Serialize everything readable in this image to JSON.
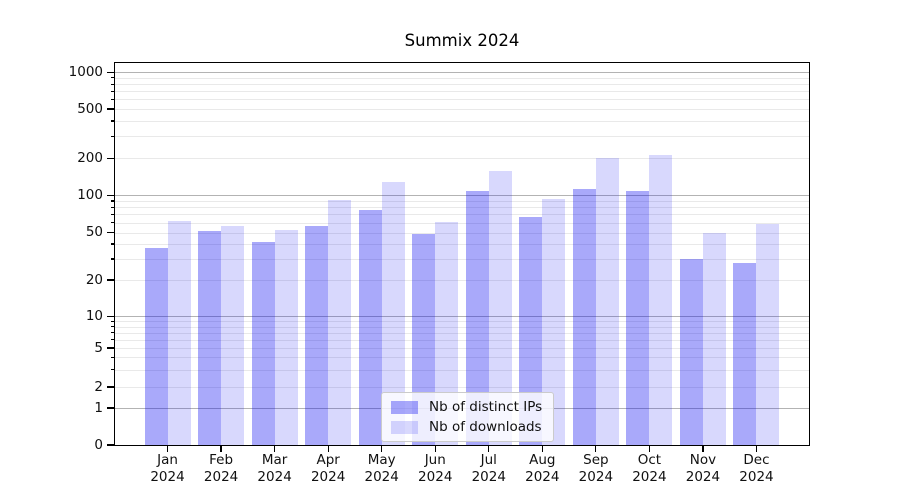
{
  "chart_data": {
    "type": "bar",
    "title": "Summix 2024",
    "year": "2024",
    "categories": [
      "Jan",
      "Feb",
      "Mar",
      "Apr",
      "May",
      "Jun",
      "Jul",
      "Aug",
      "Sep",
      "Oct",
      "Nov",
      "Dec"
    ],
    "series": [
      {
        "name": "Nb of distinct IPs",
        "color": "rgba(10,10,240,0.35)",
        "values": [
          37,
          51,
          42,
          56,
          76,
          49,
          108,
          67,
          113,
          109,
          30,
          28
        ]
      },
      {
        "name": "Nb of downloads",
        "color": "rgba(10,10,240,0.16)",
        "values": [
          62,
          56,
          52,
          91,
          128,
          61,
          158,
          94,
          201,
          212,
          50,
          59
        ]
      }
    ],
    "yscale": "symlog",
    "ylim": [
      0,
      1000
    ],
    "y_ticks": [
      0,
      1,
      2,
      5,
      10,
      20,
      50,
      100,
      200,
      500,
      1000
    ],
    "grid": "both",
    "legend_position": "lower center",
    "colors": {
      "grid_major": "#b3b3b3",
      "grid_minor": "#e9e9e9",
      "axis": "#000000",
      "text": "#111111"
    }
  }
}
